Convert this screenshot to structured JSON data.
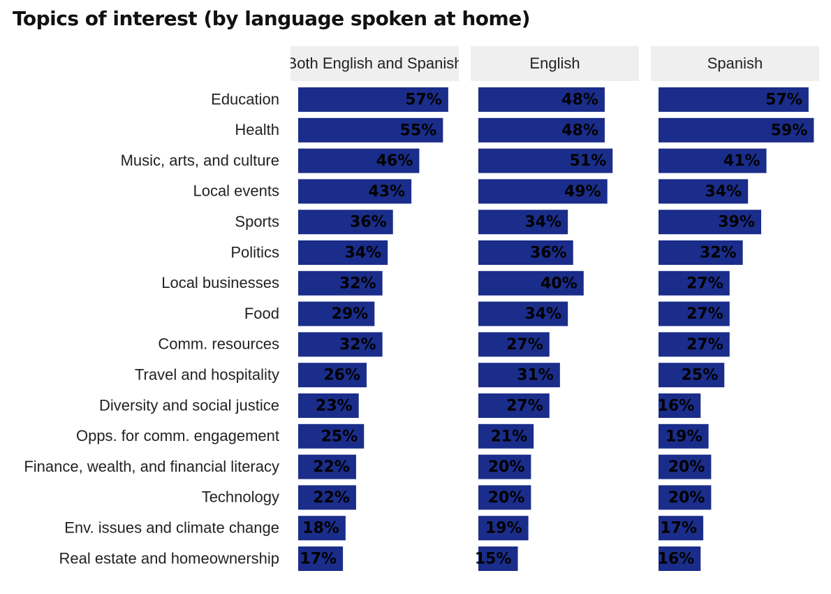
{
  "chart_data": {
    "type": "bar",
    "title": "Topics of interest (by language spoken at home)",
    "orientation": "horizontal",
    "bar_color": "#1b2d8a",
    "facet_header_color": "#efefef",
    "categories": [
      "Education",
      "Health",
      "Music, arts, and culture",
      "Local events",
      "Sports",
      "Politics",
      "Local businesses",
      "Food",
      "Comm. resources",
      "Travel and hospitality",
      "Diversity and social justice",
      "Opps. for comm. engagement",
      "Finance, wealth, and financial literacy",
      "Technology",
      "Env. issues and climate change",
      "Real estate and homeownership"
    ],
    "series": [
      {
        "name": "Both English and Spanish",
        "values": [
          57,
          55,
          46,
          43,
          36,
          34,
          32,
          29,
          32,
          26,
          23,
          25,
          22,
          22,
          18,
          17
        ]
      },
      {
        "name": "English",
        "values": [
          48,
          48,
          51,
          49,
          34,
          36,
          40,
          34,
          27,
          31,
          27,
          21,
          20,
          20,
          19,
          15
        ]
      },
      {
        "name": "Spanish",
        "values": [
          57,
          59,
          41,
          34,
          39,
          32,
          27,
          27,
          27,
          25,
          16,
          19,
          20,
          20,
          17,
          16
        ]
      }
    ],
    "value_suffix": "%",
    "xlim": [
      0,
      60
    ],
    "grid": false,
    "legend": "none"
  }
}
